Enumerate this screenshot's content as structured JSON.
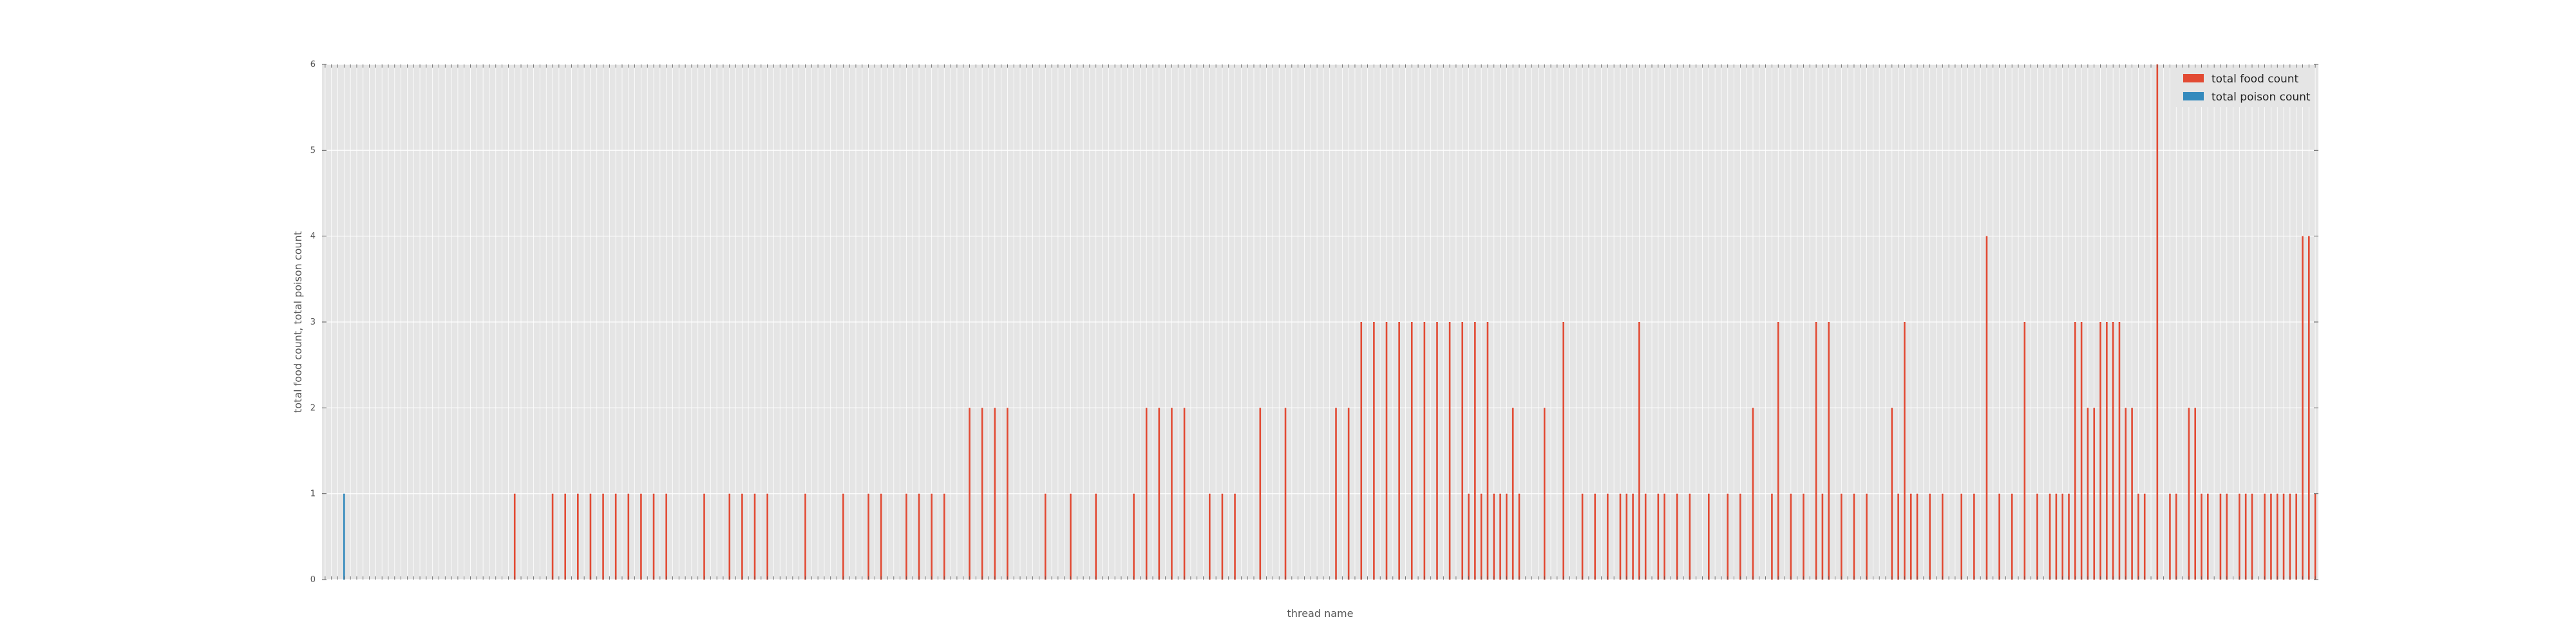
{
  "chart_data": {
    "type": "bar",
    "xlabel": "thread name",
    "ylabel": "total food count, total poison count",
    "ylim": [
      0,
      6
    ],
    "yticks": [
      "0",
      "1",
      "2",
      "3",
      "4",
      "5",
      "6"
    ],
    "grid": true,
    "legend_position": "top-right",
    "n_categories": 316,
    "series": [
      {
        "name": "total food count",
        "color": "#E24A33",
        "values": [
          0,
          0,
          0,
          0,
          0,
          0,
          0,
          0,
          0,
          0,
          0,
          0,
          0,
          0,
          0,
          0,
          0,
          0,
          0,
          0,
          0,
          0,
          0,
          0,
          0,
          0,
          0,
          0,
          0,
          0,
          1,
          0,
          0,
          0,
          0,
          0,
          1,
          0,
          1,
          0,
          1,
          0,
          1,
          0,
          1,
          0,
          1,
          0,
          1,
          0,
          1,
          0,
          1,
          0,
          1,
          0,
          0,
          0,
          0,
          0,
          1,
          0,
          0,
          0,
          1,
          0,
          1,
          0,
          1,
          0,
          1,
          0,
          0,
          0,
          0,
          0,
          1,
          0,
          0,
          0,
          0,
          0,
          1,
          0,
          0,
          0,
          1,
          0,
          1,
          0,
          0,
          0,
          1,
          0,
          1,
          0,
          1,
          0,
          1,
          0,
          0,
          0,
          2,
          0,
          2,
          0,
          2,
          0,
          2,
          0,
          0,
          0,
          0,
          0,
          1,
          0,
          0,
          0,
          1,
          0,
          0,
          0,
          1,
          0,
          0,
          0,
          0,
          0,
          1,
          0,
          2,
          0,
          2,
          0,
          2,
          0,
          2,
          0,
          0,
          0,
          1,
          0,
          1,
          0,
          1,
          0,
          0,
          0,
          2,
          0,
          0,
          0,
          2,
          0,
          0,
          0,
          0,
          0,
          0,
          0,
          2,
          0,
          2,
          0,
          3,
          0,
          3,
          0,
          3,
          0,
          3,
          0,
          3,
          0,
          3,
          0,
          3,
          0,
          3,
          0,
          3,
          0,
          3,
          0,
          3,
          0,
          1,
          0,
          2,
          0,
          0,
          0,
          0,
          0,
          0,
          0,
          0,
          0,
          0,
          0,
          0,
          0,
          0,
          0,
          0,
          0,
          1,
          0,
          3,
          0,
          0,
          0,
          1,
          0,
          3,
          0,
          0,
          0,
          0,
          0,
          0,
          0,
          0,
          0,
          1,
          0,
          0,
          0,
          0,
          0,
          3,
          0,
          2,
          0,
          3,
          0,
          3,
          0,
          3,
          0,
          1,
          0,
          1,
          0,
          2,
          0,
          0,
          0,
          2,
          0,
          3,
          0,
          1,
          0,
          0,
          0,
          0,
          0,
          0,
          0,
          0,
          0,
          0,
          0,
          0,
          0,
          0,
          0,
          0,
          0,
          0,
          0,
          0,
          0,
          0,
          0,
          0,
          0,
          0,
          0,
          0,
          0,
          0,
          0,
          0,
          0,
          0,
          0,
          0,
          0,
          0,
          0,
          0,
          0,
          0,
          0,
          0,
          0,
          0,
          0,
          0,
          0,
          0,
          0,
          0,
          0,
          0,
          0,
          0,
          0,
          0,
          0,
          0,
          0,
          0,
          0,
          0,
          0,
          0,
          0,
          0,
          0,
          0,
          0,
          0
        ]
      },
      {
        "name": "total poison count",
        "color": "#348ABD",
        "values": [
          0,
          0,
          0,
          1,
          0,
          0,
          0,
          0,
          0,
          0,
          0,
          0,
          0,
          0,
          0,
          0,
          0,
          0,
          0,
          0,
          0,
          0,
          0,
          0,
          0,
          0,
          0,
          0,
          0,
          0,
          0,
          0,
          0,
          0,
          0,
          0,
          0,
          0,
          0,
          0,
          0,
          0,
          0,
          0,
          0,
          0,
          0,
          0,
          0,
          0,
          0,
          0,
          0,
          0,
          0,
          0,
          0,
          0,
          0,
          0,
          0,
          0,
          0,
          0,
          0,
          0,
          0,
          0,
          0,
          0,
          0,
          0,
          0,
          0,
          0,
          0,
          0,
          0,
          0,
          0,
          0,
          0,
          0,
          0,
          0,
          0,
          0,
          0,
          0,
          0,
          0,
          0,
          0,
          0,
          0,
          0,
          0,
          0,
          0,
          0,
          0,
          0,
          0,
          0,
          0,
          0,
          0,
          0,
          0,
          0,
          0,
          0,
          0,
          0,
          0,
          0,
          0,
          0,
          0,
          0,
          0,
          0,
          0,
          0,
          0,
          0,
          0,
          0,
          0,
          0,
          0,
          0,
          0,
          0,
          0,
          0,
          0,
          0,
          0,
          0,
          0,
          0,
          0,
          0,
          0,
          0,
          0,
          0,
          0,
          0,
          0,
          0,
          0,
          0,
          0,
          0,
          0,
          0,
          0,
          0,
          0,
          0,
          0,
          0,
          0,
          0,
          0,
          0,
          0,
          0,
          0,
          0,
          0,
          0,
          0,
          0,
          0,
          0,
          0,
          0,
          0,
          0,
          0,
          0,
          0,
          0,
          0,
          0,
          0,
          0,
          0,
          0,
          0,
          0,
          0,
          0,
          0,
          0,
          0,
          0,
          0,
          0,
          0,
          0,
          0,
          0,
          0,
          0,
          0,
          0,
          0,
          0,
          0,
          0,
          0,
          0,
          0,
          0,
          0,
          0,
          0,
          0,
          0,
          0,
          0,
          0,
          0,
          0,
          0,
          0,
          0,
          0,
          0,
          0,
          0,
          0,
          0,
          0,
          0,
          0,
          0,
          0,
          0,
          0,
          0,
          0,
          0,
          0,
          0,
          0,
          0,
          0,
          0,
          0,
          0,
          0,
          0,
          0,
          0,
          0,
          0,
          0,
          0,
          0,
          0,
          0,
          0,
          0,
          0,
          0,
          0,
          0,
          0,
          0,
          0,
          0,
          0,
          0,
          0,
          0,
          0,
          0,
          0,
          0,
          0,
          0,
          0,
          0,
          0,
          0,
          0,
          0,
          0,
          0,
          0,
          0,
          0,
          0,
          0,
          0,
          0,
          0,
          0,
          0,
          0,
          0,
          0,
          0,
          0,
          0,
          0,
          0,
          0,
          0,
          0,
          0,
          0,
          0
        ]
      }
    ],
    "extra_food_bars": [
      [
        181,
        1
      ],
      [
        183,
        1
      ],
      [
        185,
        1
      ],
      [
        187,
        1
      ],
      [
        189,
        1
      ],
      [
        193,
        2
      ],
      [
        196,
        3
      ],
      [
        199,
        1
      ],
      [
        201,
        1
      ],
      [
        203,
        1
      ],
      [
        205,
        1
      ],
      [
        207,
        1
      ],
      [
        209,
        1
      ],
      [
        211,
        1
      ],
      [
        214,
        1
      ],
      [
        216,
        1
      ],
      [
        219,
        1
      ],
      [
        222,
        1
      ],
      [
        224,
        1
      ],
      [
        226,
        2
      ],
      [
        229,
        1
      ],
      [
        232,
        1
      ],
      [
        234,
        1
      ],
      [
        237,
        1
      ],
      [
        240,
        1
      ],
      [
        242,
        1
      ],
      [
        244,
        1
      ],
      [
        249,
        1
      ],
      [
        251,
        1
      ],
      [
        254,
        1
      ],
      [
        256,
        1
      ],
      [
        259,
        1
      ],
      [
        261,
        1
      ],
      [
        263,
        4
      ],
      [
        265,
        1
      ],
      [
        267,
        1
      ],
      [
        269,
        3
      ],
      [
        271,
        1
      ],
      [
        273,
        1
      ],
      [
        275,
        1
      ],
      [
        277,
        3
      ],
      [
        279,
        2
      ],
      [
        281,
        3
      ],
      [
        283,
        3
      ],
      [
        285,
        2
      ],
      [
        287,
        1
      ],
      [
        290,
        6
      ],
      [
        292,
        1
      ],
      [
        295,
        2
      ],
      [
        297,
        1
      ],
      [
        300,
        1
      ],
      [
        303,
        1
      ],
      [
        307,
        1
      ],
      [
        309,
        1
      ],
      [
        311,
        1
      ],
      [
        313,
        4
      ],
      [
        315,
        1
      ]
    ],
    "late_overrides": [
      [
        274,
        1
      ],
      [
        276,
        1
      ],
      [
        278,
        3
      ],
      [
        280,
        2
      ],
      [
        282,
        3
      ],
      [
        284,
        3
      ],
      [
        286,
        2
      ],
      [
        288,
        1
      ],
      [
        293,
        1
      ],
      [
        296,
        2
      ],
      [
        298,
        1
      ],
      [
        301,
        1
      ],
      [
        304,
        1
      ],
      [
        308,
        1
      ],
      [
        310,
        1
      ],
      [
        312,
        1
      ],
      [
        314,
        4
      ],
      [
        305,
        1
      ]
    ]
  }
}
